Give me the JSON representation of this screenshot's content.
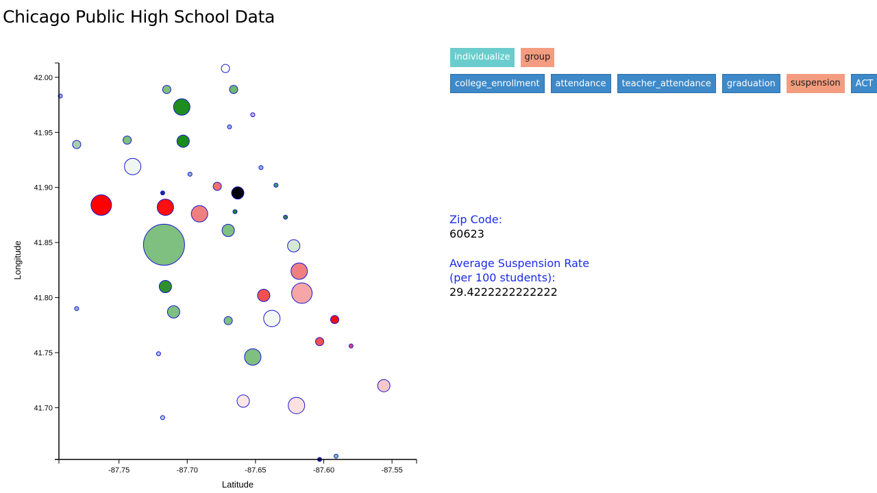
{
  "page": {
    "title": "Chicago Public High School Data"
  },
  "controls": {
    "mode_buttons": [
      {
        "label": "individualize",
        "style": "teal"
      },
      {
        "label": "group",
        "style": "salmon"
      }
    ],
    "metric_buttons": [
      {
        "label": "college_enrollment",
        "style": "blue"
      },
      {
        "label": "attendance",
        "style": "blue"
      },
      {
        "label": "teacher_attendance",
        "style": "blue"
      },
      {
        "label": "graduation",
        "style": "blue"
      },
      {
        "label": "suspension",
        "style": "salmon"
      },
      {
        "label": "ACT",
        "style": "blue"
      }
    ]
  },
  "info_panel": {
    "zip_label": "Zip Code:",
    "zip_value": "60623",
    "metric_label_line1": "Average Suspension Rate",
    "metric_label_line2": "(per 100 students):",
    "metric_value": "29.4222222222222"
  },
  "colors": {
    "point_stroke": "#1515d6",
    "teal_button": "#6acccc",
    "salmon_button": "#f39c80",
    "blue_button": "#3e89c8"
  },
  "chart_data": {
    "type": "scatter",
    "title": "",
    "xlabel": "Latitude",
    "ylabel": "Longitude",
    "xlim": [
      -87.794,
      -87.532
    ],
    "ylim": [
      41.653,
      42.013
    ],
    "xticks": [
      "-87.75",
      "-87.70",
      "-87.65",
      "-87.60",
      "-87.55"
    ],
    "xtick_values": [
      -87.75,
      -87.7,
      -87.65,
      -87.6,
      -87.55
    ],
    "yticks": [
      "42.00",
      "41.95",
      "41.90",
      "41.85",
      "41.80",
      "41.75",
      "41.70"
    ],
    "ytick_values": [
      42.0,
      41.95,
      41.9,
      41.85,
      41.8,
      41.75,
      41.7
    ],
    "grid": false,
    "legend": "none",
    "points": [
      {
        "lon": -87.672,
        "lat": 42.008,
        "size": 6,
        "color": "#ffffff"
      },
      {
        "lon": -87.793,
        "lat": 41.983,
        "size": 3,
        "color": "#9aa3e8"
      },
      {
        "lon": -87.715,
        "lat": 41.989,
        "size": 6,
        "color": "#7fbf7f"
      },
      {
        "lon": -87.666,
        "lat": 41.989,
        "size": 6,
        "color": "#6fb86f"
      },
      {
        "lon": -87.704,
        "lat": 41.973,
        "size": 12,
        "color": "#1f8c1f"
      },
      {
        "lon": -87.652,
        "lat": 41.966,
        "size": 3,
        "color": "#c8b0f0"
      },
      {
        "lon": -87.669,
        "lat": 41.955,
        "size": 3,
        "color": "#8fb0e0"
      },
      {
        "lon": -87.744,
        "lat": 41.943,
        "size": 6,
        "color": "#7fbf7f"
      },
      {
        "lon": -87.703,
        "lat": 41.942,
        "size": 9,
        "color": "#1a8c1a"
      },
      {
        "lon": -87.781,
        "lat": 41.939,
        "size": 6,
        "color": "#a9cfa9"
      },
      {
        "lon": -87.74,
        "lat": 41.919,
        "size": 12,
        "color": "#f0f6f0"
      },
      {
        "lon": -87.646,
        "lat": 41.918,
        "size": 3,
        "color": "#8fb0e0"
      },
      {
        "lon": -87.698,
        "lat": 41.912,
        "size": 3,
        "color": "#8fb0e0"
      },
      {
        "lon": -87.678,
        "lat": 41.901,
        "size": 6,
        "color": "#f07070"
      },
      {
        "lon": -87.635,
        "lat": 41.902,
        "size": 3,
        "color": "#3f9f6f"
      },
      {
        "lon": -87.718,
        "lat": 41.895,
        "size": 3,
        "color": "#1a2a8c"
      },
      {
        "lon": -87.663,
        "lat": 41.895,
        "size": 9,
        "color": "#000000"
      },
      {
        "lon": -87.763,
        "lat": 41.884,
        "size": 15,
        "color": "#ff0000"
      },
      {
        "lon": -87.716,
        "lat": 41.882,
        "size": 12,
        "color": "#ff1010"
      },
      {
        "lon": -87.691,
        "lat": 41.876,
        "size": 12,
        "color": "#f08080"
      },
      {
        "lon": -87.665,
        "lat": 41.878,
        "size": 3,
        "color": "#1a8c1a"
      },
      {
        "lon": -87.628,
        "lat": 41.873,
        "size": 3,
        "color": "#2f7f5f"
      },
      {
        "lon": -87.67,
        "lat": 41.861,
        "size": 9,
        "color": "#7fbf7f"
      },
      {
        "lon": -87.717,
        "lat": 41.848,
        "size": 30,
        "color": "#7fbf7f"
      },
      {
        "lon": -87.622,
        "lat": 41.847,
        "size": 9,
        "color": "#d5e8d5"
      },
      {
        "lon": -87.618,
        "lat": 41.824,
        "size": 12,
        "color": "#f08080"
      },
      {
        "lon": -87.716,
        "lat": 41.81,
        "size": 9,
        "color": "#2f8f2f"
      },
      {
        "lon": -87.644,
        "lat": 41.802,
        "size": 9,
        "color": "#f05050"
      },
      {
        "lon": -87.616,
        "lat": 41.804,
        "size": 15,
        "color": "#f6a6a6"
      },
      {
        "lon": -87.781,
        "lat": 41.79,
        "size": 3,
        "color": "#9ab0e0"
      },
      {
        "lon": -87.71,
        "lat": 41.787,
        "size": 9,
        "color": "#7fbf7f"
      },
      {
        "lon": -87.638,
        "lat": 41.781,
        "size": 12,
        "color": "#f4f8f4"
      },
      {
        "lon": -87.67,
        "lat": 41.779,
        "size": 6,
        "color": "#7fbf7f"
      },
      {
        "lon": -87.592,
        "lat": 41.78,
        "size": 6,
        "color": "#e81020"
      },
      {
        "lon": -87.603,
        "lat": 41.76,
        "size": 6,
        "color": "#f05050"
      },
      {
        "lon": -87.58,
        "lat": 41.756,
        "size": 3,
        "color": "#e84080"
      },
      {
        "lon": -87.721,
        "lat": 41.749,
        "size": 3,
        "color": "#b0c0f0"
      },
      {
        "lon": -87.652,
        "lat": 41.746,
        "size": 12,
        "color": "#7fbf7f"
      },
      {
        "lon": -87.556,
        "lat": 41.72,
        "size": 9,
        "color": "#f8c8c8"
      },
      {
        "lon": -87.659,
        "lat": 41.706,
        "size": 9,
        "color": "#fde6e6"
      },
      {
        "lon": -87.62,
        "lat": 41.702,
        "size": 12,
        "color": "#fde0e0"
      },
      {
        "lon": -87.718,
        "lat": 41.691,
        "size": 3,
        "color": "#a9cfe9"
      },
      {
        "lon": -87.591,
        "lat": 41.656,
        "size": 3,
        "color": "#7fbf9f"
      },
      {
        "lon": -87.603,
        "lat": 41.653,
        "size": 3,
        "color": "#1a2a6c"
      }
    ]
  }
}
